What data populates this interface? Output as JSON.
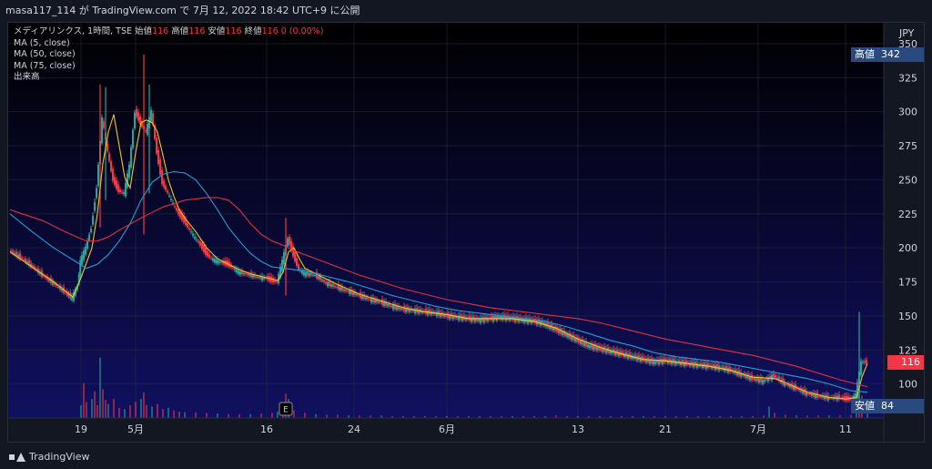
{
  "header": {
    "text": "masa117_114 が TradingView.com で 7月 12, 2022 18:42 UTC+9 に公開"
  },
  "legend": {
    "symbol_line": "メディアリンクス, 1時間, TSE",
    "ohlc": [
      {
        "k": "始値",
        "v": "116"
      },
      {
        "k": "高値",
        "v": "116"
      },
      {
        "k": "安値",
        "v": "116"
      },
      {
        "k": "終値",
        "v": "116"
      }
    ],
    "change": "0 (0.00%)",
    "indicators": [
      "MA (5, close)",
      "MA (50, close)",
      "MA (75, close)",
      "出来高"
    ]
  },
  "colors": {
    "up": "#26a69a",
    "down": "#f23645",
    "ma5": "#f5c518",
    "ma50": "#1e9fd4",
    "ma75": "#e0303b",
    "bg_top": "#000000",
    "bg_bottom": "#101060"
  },
  "price_tags": {
    "high": {
      "label": "高値",
      "value": "342",
      "price": 342
    },
    "current": {
      "value": "116",
      "price": 116
    },
    "low": {
      "label": "安値",
      "value": "84",
      "price": 84
    }
  },
  "event_marker": "E",
  "brand": "TradingView",
  "chart_data": {
    "type": "line",
    "title": "メディアリンクス, 1時間, TSE",
    "currency": "JPY",
    "ylim": [
      75,
      360
    ],
    "y_ticks": [
      100,
      125,
      150,
      175,
      200,
      225,
      250,
      275,
      300,
      325,
      350
    ],
    "x_ticks": [
      {
        "label": "19",
        "x": 13
      },
      {
        "label": "5月",
        "x": 23
      },
      {
        "label": "16",
        "x": 47
      },
      {
        "label": "24",
        "x": 63
      },
      {
        "label": "6月",
        "x": 80
      },
      {
        "label": "13",
        "x": 104
      },
      {
        "label": "21",
        "x": 120
      },
      {
        "label": "7月",
        "x": 137
      },
      {
        "label": "11",
        "x": 153
      }
    ],
    "x_range": [
      0,
      158
    ],
    "event_x": 50.5,
    "price_path": [
      [
        0,
        198
      ],
      [
        2,
        193
      ],
      [
        4,
        187
      ],
      [
        6,
        180
      ],
      [
        8,
        174
      ],
      [
        10,
        168
      ],
      [
        11.5,
        163
      ],
      [
        12.5,
        172
      ],
      [
        13,
        190
      ],
      [
        14,
        200
      ],
      [
        15,
        215
      ],
      [
        16,
        245
      ],
      [
        17,
        295
      ],
      [
        18,
        270
      ],
      [
        19,
        250
      ],
      [
        20,
        242
      ],
      [
        21,
        240
      ],
      [
        22,
        260
      ],
      [
        23,
        300
      ],
      [
        24,
        292
      ],
      [
        25,
        285
      ],
      [
        26,
        300
      ],
      [
        27,
        270
      ],
      [
        28,
        248
      ],
      [
        29,
        240
      ],
      [
        30,
        232
      ],
      [
        31,
        225
      ],
      [
        32,
        220
      ],
      [
        33,
        213
      ],
      [
        34,
        207
      ],
      [
        35,
        202
      ],
      [
        36,
        196
      ],
      [
        37,
        192
      ],
      [
        38,
        190
      ],
      [
        39,
        189
      ],
      [
        40,
        188
      ],
      [
        41,
        185
      ],
      [
        42,
        182
      ],
      [
        44,
        180
      ],
      [
        46,
        178
      ],
      [
        47,
        178
      ],
      [
        48,
        176
      ],
      [
        49,
        175
      ],
      [
        50,
        190
      ],
      [
        51,
        207
      ],
      [
        52,
        195
      ],
      [
        53,
        184
      ],
      [
        54,
        181
      ],
      [
        56,
        180
      ],
      [
        58,
        174
      ],
      [
        60,
        171
      ],
      [
        62,
        168
      ],
      [
        64,
        165
      ],
      [
        66,
        162
      ],
      [
        68,
        160
      ],
      [
        70,
        157
      ],
      [
        72,
        155
      ],
      [
        74,
        154
      ],
      [
        76,
        153
      ],
      [
        78,
        152
      ],
      [
        80,
        150
      ],
      [
        82,
        149
      ],
      [
        84,
        148
      ],
      [
        86,
        147
      ],
      [
        88,
        148
      ],
      [
        90,
        149
      ],
      [
        92,
        148
      ],
      [
        94,
        147
      ],
      [
        96,
        146
      ],
      [
        98,
        144
      ],
      [
        100,
        140
      ],
      [
        102,
        136
      ],
      [
        104,
        132
      ],
      [
        106,
        128
      ],
      [
        108,
        126
      ],
      [
        110,
        124
      ],
      [
        112,
        122
      ],
      [
        114,
        120
      ],
      [
        116,
        118
      ],
      [
        118,
        116
      ],
      [
        120,
        117
      ],
      [
        122,
        116
      ],
      [
        124,
        115
      ],
      [
        126,
        114
      ],
      [
        128,
        113
      ],
      [
        130,
        112
      ],
      [
        132,
        110
      ],
      [
        134,
        107
      ],
      [
        136,
        104
      ],
      [
        138,
        102
      ],
      [
        140,
        106
      ],
      [
        142,
        100
      ],
      [
        144,
        97
      ],
      [
        146,
        93
      ],
      [
        148,
        91
      ],
      [
        150,
        90
      ],
      [
        152,
        90
      ],
      [
        153,
        89
      ],
      [
        154,
        89
      ],
      [
        155,
        92
      ],
      [
        156,
        116
      ],
      [
        157,
        116
      ]
    ],
    "spikes": [
      {
        "x": 16.5,
        "high": 320,
        "low": 215
      },
      {
        "x": 17.5,
        "high": 318,
        "low": 235
      },
      {
        "x": 24.5,
        "high": 342,
        "low": 210
      },
      {
        "x": 25.5,
        "high": 320,
        "low": 240
      },
      {
        "x": 50.5,
        "high": 222,
        "low": 165
      },
      {
        "x": 155.5,
        "high": 153,
        "low": 84
      }
    ],
    "series": [
      {
        "name": "MA (5, close)",
        "values": [
          [
            0,
            197
          ],
          [
            4,
            186
          ],
          [
            8,
            175
          ],
          [
            11.5,
            164
          ],
          [
            13,
            178
          ],
          [
            15,
            200
          ],
          [
            16,
            225
          ],
          [
            17,
            262
          ],
          [
            18,
            285
          ],
          [
            19,
            298
          ],
          [
            20,
            275
          ],
          [
            21,
            252
          ],
          [
            22,
            244
          ],
          [
            23,
            270
          ],
          [
            24,
            292
          ],
          [
            25,
            294
          ],
          [
            26,
            292
          ],
          [
            27,
            285
          ],
          [
            28,
            268
          ],
          [
            29,
            250
          ],
          [
            30,
            238
          ],
          [
            31,
            228
          ],
          [
            32,
            222
          ],
          [
            34,
            212
          ],
          [
            36,
            200
          ],
          [
            38,
            192
          ],
          [
            40,
            188
          ],
          [
            42,
            184
          ],
          [
            44,
            181
          ],
          [
            46,
            179
          ],
          [
            48,
            177
          ],
          [
            49,
            176
          ],
          [
            50,
            182
          ],
          [
            51,
            197
          ],
          [
            52,
            200
          ],
          [
            53,
            192
          ],
          [
            54,
            185
          ],
          [
            56,
            181
          ],
          [
            60,
            173
          ],
          [
            64,
            166
          ],
          [
            68,
            161
          ],
          [
            72,
            156
          ],
          [
            76,
            153
          ],
          [
            80,
            151
          ],
          [
            84,
            148
          ],
          [
            88,
            148
          ],
          [
            92,
            148
          ],
          [
            96,
            146
          ],
          [
            100,
            141
          ],
          [
            104,
            133
          ],
          [
            108,
            127
          ],
          [
            112,
            122
          ],
          [
            116,
            118
          ],
          [
            120,
            117
          ],
          [
            124,
            115
          ],
          [
            128,
            113
          ],
          [
            132,
            110
          ],
          [
            136,
            105
          ],
          [
            140,
            104
          ],
          [
            142,
            101
          ],
          [
            146,
            94
          ],
          [
            150,
            90
          ],
          [
            153,
            89
          ],
          [
            155,
            90
          ],
          [
            156,
            105
          ],
          [
            157,
            115
          ]
        ]
      },
      {
        "name": "MA (50, close)",
        "values": [
          [
            0,
            225
          ],
          [
            4,
            212
          ],
          [
            8,
            200
          ],
          [
            12,
            190
          ],
          [
            14,
            185
          ],
          [
            16,
            188
          ],
          [
            18,
            195
          ],
          [
            20,
            205
          ],
          [
            22,
            218
          ],
          [
            24,
            235
          ],
          [
            26,
            248
          ],
          [
            28,
            254
          ],
          [
            30,
            256
          ],
          [
            32,
            255
          ],
          [
            34,
            250
          ],
          [
            36,
            240
          ],
          [
            38,
            228
          ],
          [
            40,
            215
          ],
          [
            42,
            205
          ],
          [
            44,
            196
          ],
          [
            46,
            190
          ],
          [
            48,
            186
          ],
          [
            50,
            185
          ],
          [
            52,
            184
          ],
          [
            54,
            183
          ],
          [
            58,
            179
          ],
          [
            62,
            175
          ],
          [
            66,
            170
          ],
          [
            70,
            165
          ],
          [
            74,
            161
          ],
          [
            78,
            157
          ],
          [
            82,
            154
          ],
          [
            86,
            152
          ],
          [
            90,
            150
          ],
          [
            94,
            148
          ],
          [
            98,
            146
          ],
          [
            102,
            142
          ],
          [
            106,
            137
          ],
          [
            110,
            132
          ],
          [
            114,
            128
          ],
          [
            118,
            123
          ],
          [
            122,
            120
          ],
          [
            126,
            118
          ],
          [
            130,
            116
          ],
          [
            134,
            113
          ],
          [
            138,
            110
          ],
          [
            142,
            107
          ],
          [
            146,
            104
          ],
          [
            150,
            100
          ],
          [
            154,
            95
          ],
          [
            157,
            94
          ]
        ]
      },
      {
        "name": "MA (75, close)",
        "values": [
          [
            0,
            228
          ],
          [
            6,
            220
          ],
          [
            10,
            212
          ],
          [
            14,
            205
          ],
          [
            16,
            205
          ],
          [
            18,
            208
          ],
          [
            20,
            213
          ],
          [
            24,
            222
          ],
          [
            28,
            230
          ],
          [
            32,
            235
          ],
          [
            36,
            237
          ],
          [
            38,
            237
          ],
          [
            40,
            235
          ],
          [
            42,
            228
          ],
          [
            44,
            218
          ],
          [
            46,
            210
          ],
          [
            48,
            205
          ],
          [
            50,
            202
          ],
          [
            52,
            198
          ],
          [
            56,
            192
          ],
          [
            60,
            186
          ],
          [
            64,
            180
          ],
          [
            68,
            175
          ],
          [
            72,
            170
          ],
          [
            76,
            166
          ],
          [
            80,
            162
          ],
          [
            84,
            159
          ],
          [
            88,
            156
          ],
          [
            92,
            154
          ],
          [
            96,
            152
          ],
          [
            100,
            150
          ],
          [
            104,
            148
          ],
          [
            108,
            145
          ],
          [
            112,
            141
          ],
          [
            116,
            137
          ],
          [
            120,
            133
          ],
          [
            124,
            130
          ],
          [
            128,
            127
          ],
          [
            132,
            124
          ],
          [
            136,
            121
          ],
          [
            140,
            117
          ],
          [
            144,
            113
          ],
          [
            148,
            108
          ],
          [
            152,
            103
          ],
          [
            155,
            100
          ],
          [
            157,
            98
          ]
        ]
      }
    ],
    "volume": [
      [
        13,
        20
      ],
      [
        13.5,
        55
      ],
      [
        14,
        25
      ],
      [
        15,
        30
      ],
      [
        15.5,
        42
      ],
      [
        16,
        20
      ],
      [
        16.5,
        95
      ],
      [
        17,
        45
      ],
      [
        17.5,
        28
      ],
      [
        18,
        22
      ],
      [
        19,
        30
      ],
      [
        20,
        16
      ],
      [
        21,
        14
      ],
      [
        22,
        20
      ],
      [
        23,
        26
      ],
      [
        24,
        30
      ],
      [
        24.5,
        40
      ],
      [
        25,
        20
      ],
      [
        26,
        18
      ],
      [
        27,
        22
      ],
      [
        28,
        14
      ],
      [
        29,
        16
      ],
      [
        30,
        12
      ],
      [
        31,
        10
      ],
      [
        32,
        9
      ],
      [
        34,
        9
      ],
      [
        36,
        8
      ],
      [
        38,
        7
      ],
      [
        40,
        6
      ],
      [
        42,
        6
      ],
      [
        44,
        6
      ],
      [
        46,
        7
      ],
      [
        48,
        8
      ],
      [
        49,
        10
      ],
      [
        50,
        25
      ],
      [
        50.5,
        38
      ],
      [
        51,
        30
      ],
      [
        52,
        12
      ],
      [
        54,
        8
      ],
      [
        56,
        6
      ],
      [
        58,
        5
      ],
      [
        60,
        5
      ],
      [
        62,
        4
      ],
      [
        64,
        4
      ],
      [
        66,
        4
      ],
      [
        68,
        4
      ],
      [
        70,
        3
      ],
      [
        72,
        3
      ],
      [
        74,
        3
      ],
      [
        76,
        3
      ],
      [
        78,
        3
      ],
      [
        80,
        3
      ],
      [
        82,
        3
      ],
      [
        84,
        3
      ],
      [
        86,
        3
      ],
      [
        88,
        3
      ],
      [
        90,
        3
      ],
      [
        92,
        3
      ],
      [
        94,
        3
      ],
      [
        96,
        3
      ],
      [
        98,
        3
      ],
      [
        100,
        4
      ],
      [
        102,
        3
      ],
      [
        104,
        3
      ],
      [
        106,
        3
      ],
      [
        108,
        3
      ],
      [
        110,
        3
      ],
      [
        112,
        3
      ],
      [
        114,
        3
      ],
      [
        116,
        3
      ],
      [
        118,
        3
      ],
      [
        120,
        3
      ],
      [
        122,
        3
      ],
      [
        124,
        3
      ],
      [
        126,
        3
      ],
      [
        128,
        3
      ],
      [
        130,
        3
      ],
      [
        132,
        3
      ],
      [
        134,
        3
      ],
      [
        136,
        3
      ],
      [
        138,
        4
      ],
      [
        139,
        18
      ],
      [
        140,
        8
      ],
      [
        142,
        5
      ],
      [
        144,
        4
      ],
      [
        146,
        4
      ],
      [
        148,
        4
      ],
      [
        150,
        4
      ],
      [
        152,
        4
      ],
      [
        154,
        5
      ],
      [
        155,
        14
      ],
      [
        155.5,
        65
      ],
      [
        156,
        35
      ],
      [
        157,
        25
      ]
    ],
    "volume_max": 100
  }
}
